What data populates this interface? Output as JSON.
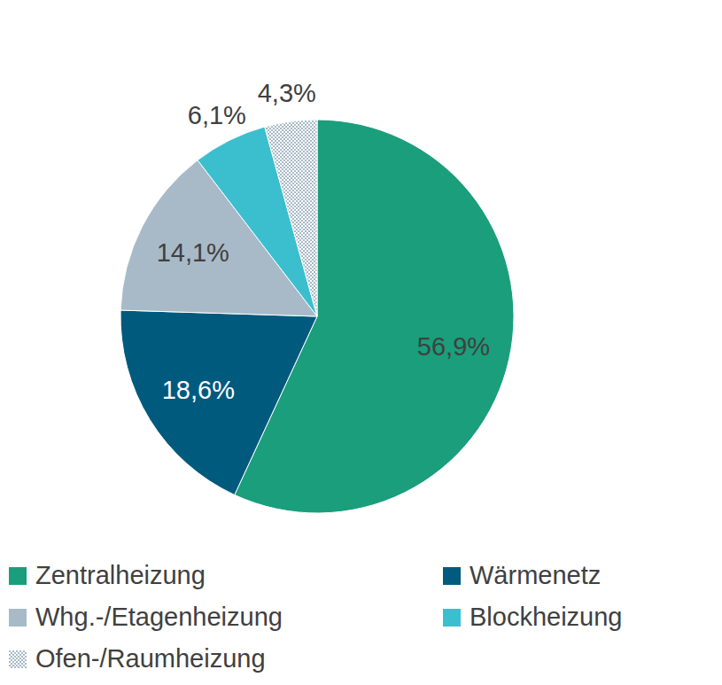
{
  "chart_data": {
    "type": "pie",
    "categories": [
      "Zentralheizung",
      "Wärmenetz",
      "Whg.-/Etagenheizung",
      "Blockheizung",
      "Ofen-/Raumheizung"
    ],
    "values": [
      56.9,
      18.6,
      14.1,
      6.1,
      4.3
    ],
    "value_labels": [
      "56,9%",
      "18,6%",
      "14,1%",
      "6,1%",
      "4,3%"
    ],
    "colors": [
      "#1a9e7b",
      "#005a7e",
      "#a8bac7",
      "#3bbfcf",
      "#a8bac7"
    ],
    "data_labels": true,
    "legend": "bottom"
  }
}
